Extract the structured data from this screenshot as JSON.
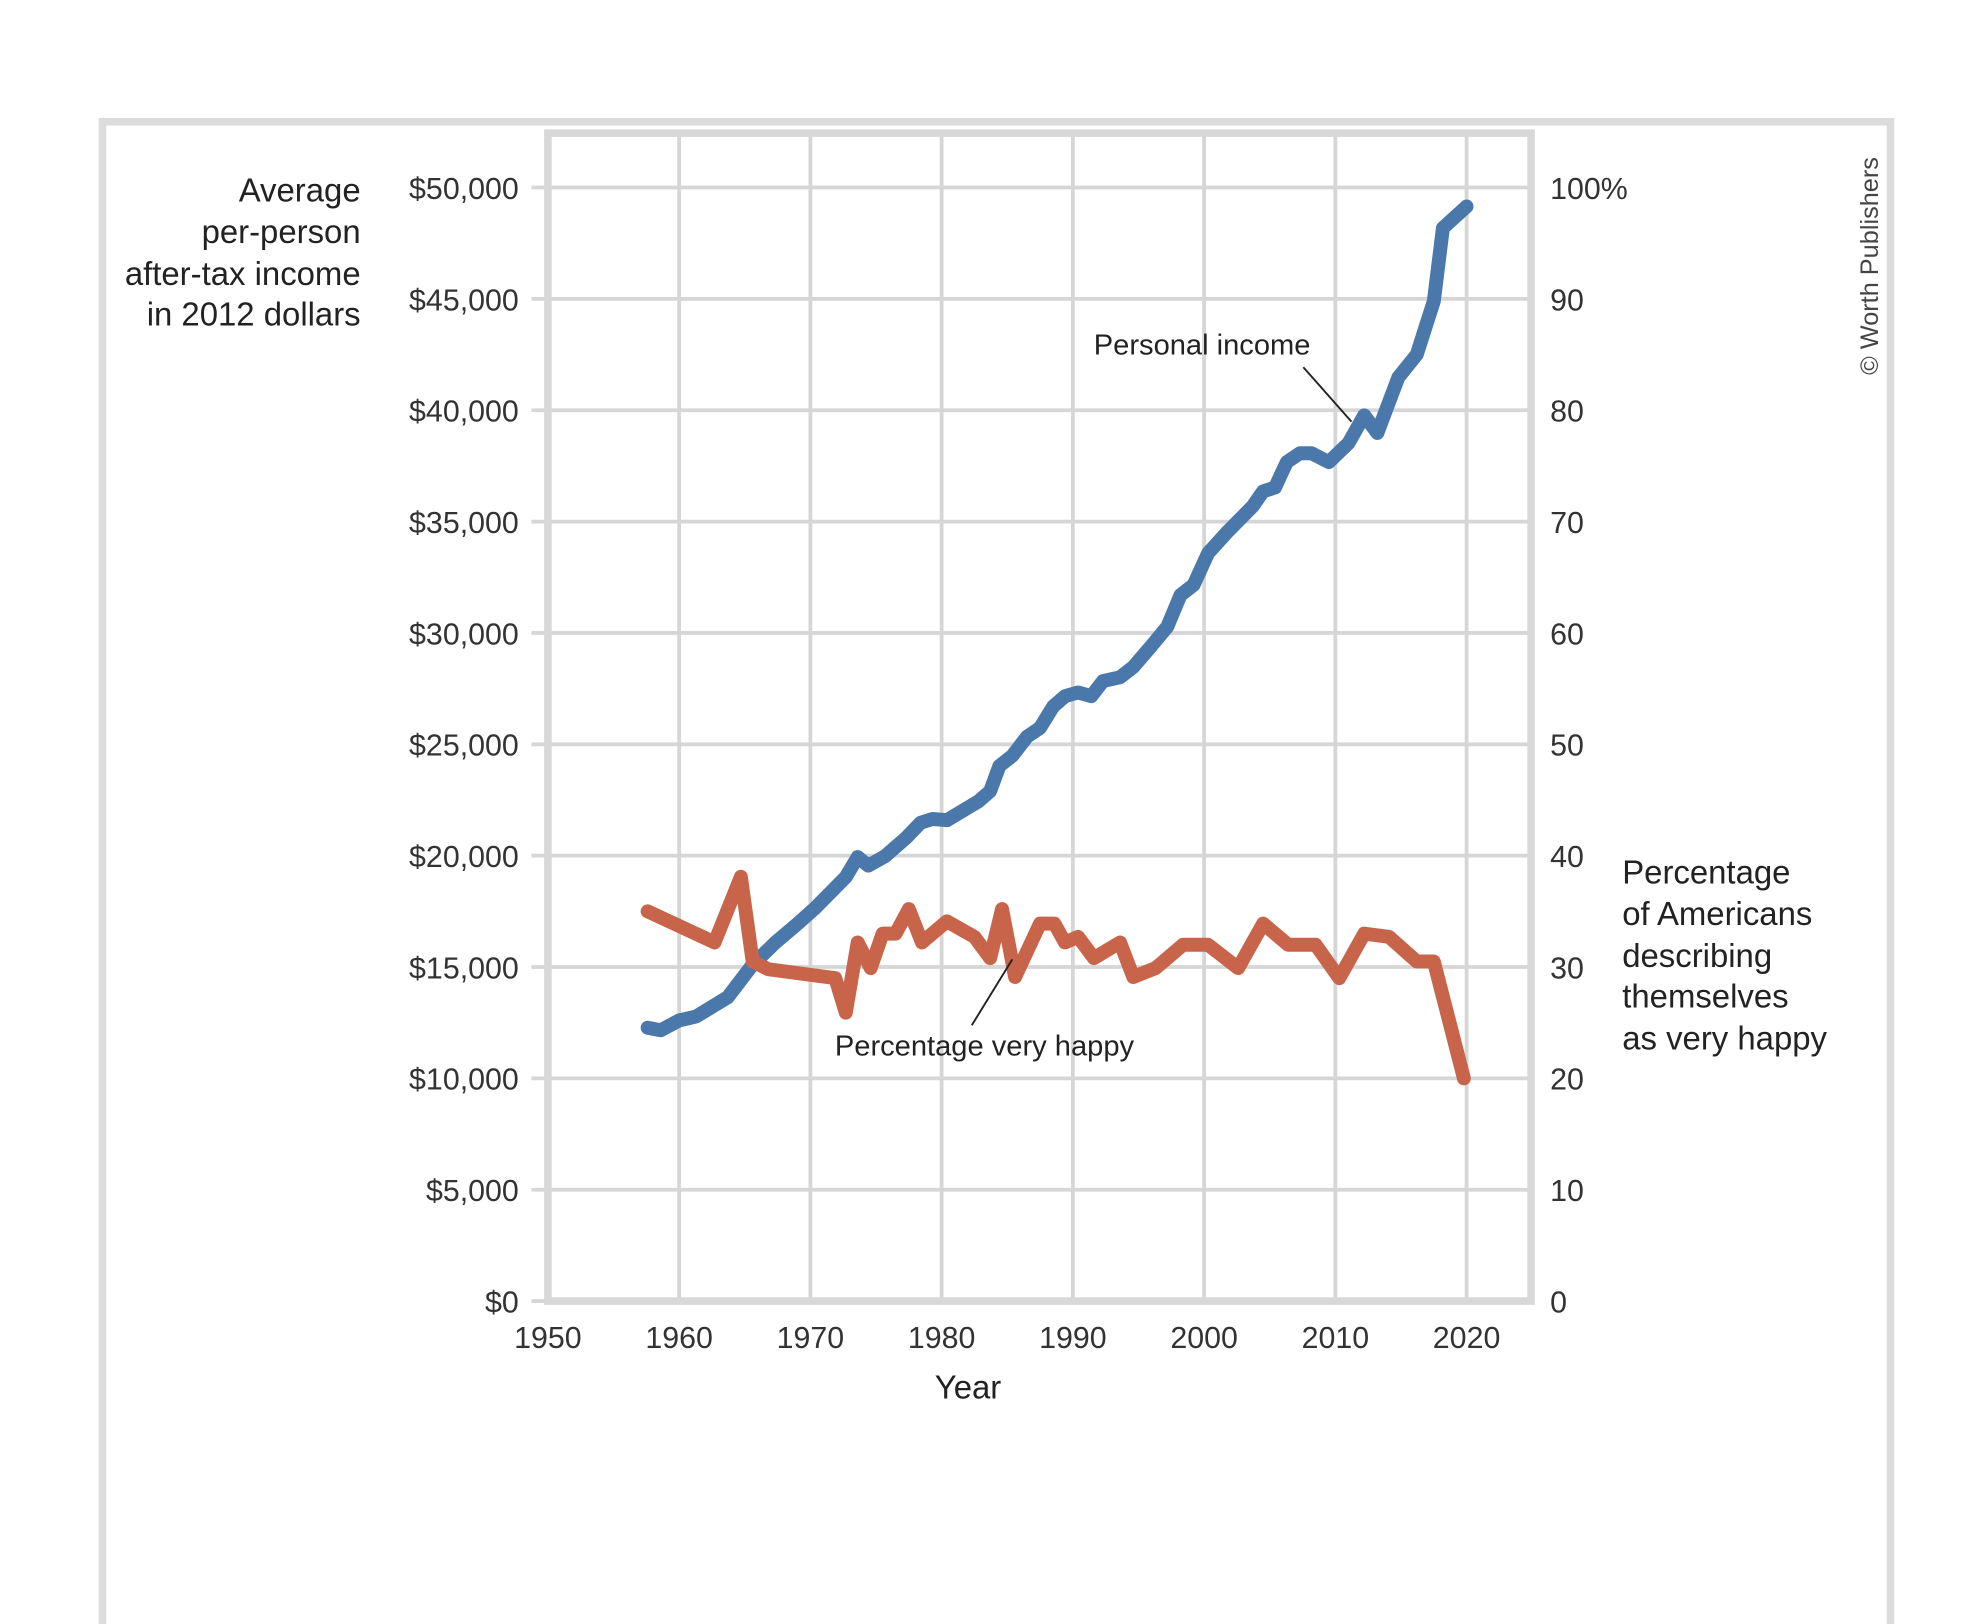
{
  "chart_data": {
    "type": "line",
    "title": "",
    "xlabel": "Year",
    "ylabel_left": [
      "Average",
      "per-person",
      "after-tax income",
      "in 2012 dollars"
    ],
    "ylabel_right": [
      "Percentage",
      "of Americans",
      "describing",
      "themselves",
      "as very happy"
    ],
    "xlim": [
      1950,
      2020
    ],
    "ylim_left": [
      0,
      50000
    ],
    "ylim_right": [
      0,
      100
    ],
    "x_ticks": [
      "1950",
      "1960",
      "1970",
      "1980",
      "1990",
      "2000",
      "2010",
      "2020"
    ],
    "y_ticks_left": [
      "$0",
      "$5,000",
      "$10,000",
      "$15,000",
      "$20,000",
      "$25,000",
      "$30,000",
      "$35,000",
      "$40,000",
      "$45,000",
      "$50,000"
    ],
    "y_ticks_right": [
      "0",
      "10",
      "20",
      "30",
      "40",
      "50",
      "60",
      "70",
      "80",
      "90",
      "100%"
    ],
    "grid": true,
    "series": [
      {
        "name": "Personal income",
        "axis": "left",
        "color": "#4a78ab",
        "x": [
          1957.6,
          1958.6,
          1960,
          1961.3,
          1963.7,
          1965.6,
          1967.3,
          1969,
          1970.4,
          1972.7,
          1973.6,
          1974.4,
          1975.7,
          1977.3,
          1978.4,
          1979.3,
          1980.4,
          1982.8,
          1983.7,
          1984.4,
          1985.4,
          1986.5,
          1987.5,
          1988.5,
          1989.4,
          1990.4,
          1991.4,
          1992.3,
          1993.6,
          1994.6,
          1996,
          1997.2,
          1998.2,
          1999.2,
          2000.3,
          2001.8,
          2003.7,
          2004.5,
          2005.4,
          2006.3,
          2007.3,
          2008.2,
          2009.5,
          2011,
          2012.2,
          2013.2,
          2014.8,
          2016.2,
          2017.5,
          2018.2,
          2020
        ],
        "y": [
          12270,
          12160,
          12600,
          12780,
          13640,
          15110,
          16080,
          16930,
          17670,
          19040,
          19940,
          19550,
          19980,
          20800,
          21480,
          21650,
          21590,
          22440,
          22900,
          24030,
          24490,
          25340,
          25740,
          26700,
          27160,
          27330,
          27160,
          27840,
          28010,
          28470,
          29430,
          30280,
          31700,
          32160,
          33580,
          34550,
          35680,
          36360,
          36530,
          37670,
          38070,
          38070,
          37670,
          38520,
          39770,
          38980,
          41480,
          42500,
          44890,
          48180,
          49150
        ]
      },
      {
        "name": "Percentage very happy",
        "axis": "right",
        "color": "#c8644a",
        "x": [
          1957.6,
          1962.7,
          1964.7,
          1965.6,
          1966.8,
          1971.9,
          1972.7,
          1973.6,
          1974.6,
          1975.5,
          1976.5,
          1977.5,
          1978.5,
          1980.4,
          1982.5,
          1983.7,
          1984.6,
          1985.6,
          1987.5,
          1988.6,
          1989.4,
          1990.4,
          1991.6,
          1993.6,
          1994.6,
          1996.3,
          1998.4,
          2000.3,
          2002.6,
          2004.5,
          2006.4,
          2008.5,
          2010.3,
          2012.2,
          2014.1,
          2016.2,
          2017.5,
          2019.8
        ],
        "y": [
          35.0,
          32.2,
          38.1,
          30.5,
          29.8,
          29.0,
          25.9,
          32.2,
          29.9,
          33.0,
          33.0,
          35.2,
          32.2,
          34.1,
          32.7,
          30.8,
          35.2,
          29.1,
          33.9,
          33.9,
          32.2,
          32.7,
          30.8,
          32.2,
          29.1,
          29.9,
          32.0,
          32.0,
          29.9,
          33.9,
          32.0,
          32.0,
          29.0,
          33.0,
          32.7,
          30.5,
          30.5,
          20.0
        ]
      }
    ],
    "annotations": [
      "Personal income",
      "Percentage very happy"
    ],
    "credit": "© Worth Publishers"
  }
}
